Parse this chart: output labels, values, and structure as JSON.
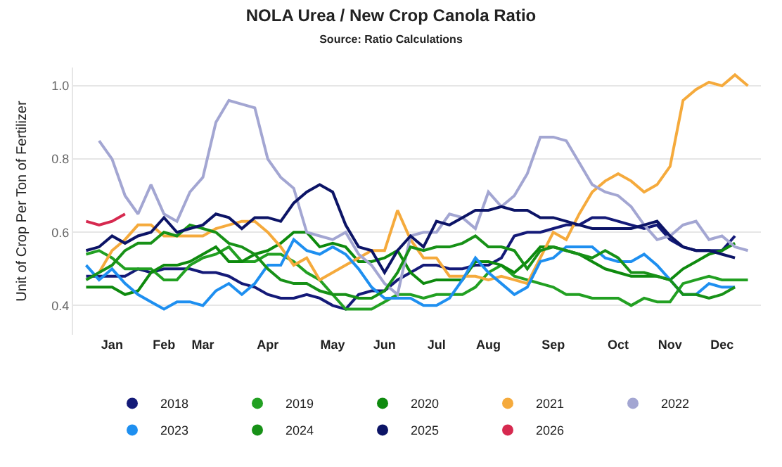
{
  "chart_data": {
    "type": "line",
    "title": "NOLA Urea / New Crop Canola Ratio",
    "subtitle": "Source: Ratio Calculations",
    "ylabel": "Unit of Crop Per Ton of Fertilizer",
    "categories": [
      null,
      null,
      "Jan",
      null,
      null,
      null,
      "Feb",
      null,
      null,
      "Mar",
      null,
      null,
      null,
      null,
      "Apr",
      null,
      null,
      null,
      null,
      "May",
      null,
      null,
      null,
      "Jun",
      null,
      null,
      null,
      "Jul",
      null,
      null,
      null,
      "Aug",
      null,
      null,
      null,
      null,
      "Sep",
      null,
      null,
      null,
      null,
      "Oct",
      null,
      null,
      null,
      "Nov",
      null,
      null,
      null,
      "Dec",
      null,
      null
    ],
    "ylim": [
      0.32,
      1.05
    ],
    "yticks": [
      0.4,
      0.6,
      0.8,
      {
        "value": 1.0,
        "label": "1.0"
      }
    ],
    "grid": "y",
    "legend": "bottom",
    "marker": "none",
    "line_style": "solid",
    "series": [
      {
        "name": "2018",
        "color": "#141a78",
        "values": [
          0.48,
          0.48,
          0.48,
          0.48,
          0.5,
          0.49,
          0.5,
          0.5,
          0.5,
          0.49,
          0.49,
          0.48,
          0.46,
          0.45,
          0.43,
          0.42,
          0.42,
          0.43,
          0.42,
          0.4,
          0.39,
          0.43,
          0.44,
          0.44,
          0.47,
          0.49,
          0.51,
          0.51,
          0.5,
          0.5,
          0.51,
          0.51,
          0.53,
          0.59,
          0.6,
          0.6,
          0.61,
          0.62,
          0.62,
          0.64,
          0.64,
          0.63,
          0.62,
          0.61,
          0.62,
          0.58,
          0.56,
          0.55,
          0.55,
          0.55,
          0.59,
          null
        ]
      },
      {
        "name": "2019",
        "color": "#22a022",
        "values": [
          0.54,
          0.55,
          0.53,
          0.5,
          0.5,
          0.5,
          0.47,
          0.47,
          0.51,
          0.53,
          0.54,
          0.56,
          0.52,
          0.52,
          0.54,
          0.54,
          0.52,
          0.49,
          0.47,
          0.43,
          0.39,
          0.39,
          0.39,
          0.41,
          0.43,
          0.43,
          0.42,
          0.43,
          0.43,
          0.43,
          0.45,
          0.49,
          0.51,
          0.48,
          0.47,
          0.46,
          0.45,
          0.43,
          0.43,
          0.42,
          0.42,
          0.42,
          0.4,
          0.42,
          0.41,
          0.41,
          0.46,
          0.47,
          0.48,
          0.47,
          0.47,
          0.47
        ]
      },
      {
        "name": "2020",
        "color": "#0e8a0e",
        "values": [
          0.45,
          0.45,
          0.45,
          0.43,
          0.44,
          0.49,
          0.51,
          0.51,
          0.52,
          0.54,
          0.56,
          0.52,
          0.52,
          0.54,
          0.55,
          0.57,
          0.6,
          0.6,
          0.56,
          0.57,
          0.56,
          0.52,
          0.52,
          0.53,
          0.55,
          0.49,
          0.46,
          0.47,
          0.47,
          0.47,
          0.52,
          0.52,
          0.51,
          0.49,
          0.52,
          0.56,
          0.56,
          0.55,
          0.54,
          0.52,
          0.5,
          0.49,
          0.48,
          0.48,
          0.48,
          0.47,
          0.5,
          0.52,
          0.54,
          0.55,
          0.57,
          null
        ]
      },
      {
        "name": "2021",
        "color": "#f5aa3c",
        "values": [
          null,
          0.49,
          0.55,
          0.58,
          0.62,
          0.62,
          0.59,
          0.59,
          0.59,
          0.59,
          0.61,
          0.62,
          0.63,
          0.63,
          0.6,
          0.56,
          0.51,
          0.53,
          0.47,
          0.49,
          0.51,
          0.53,
          0.55,
          0.55,
          0.66,
          0.58,
          0.53,
          0.53,
          0.48,
          0.48,
          0.48,
          0.47,
          0.48,
          0.47,
          0.46,
          0.53,
          0.6,
          0.58,
          0.65,
          0.71,
          0.74,
          0.76,
          0.74,
          0.71,
          0.73,
          0.78,
          0.96,
          0.99,
          1.01,
          1.0,
          1.03,
          1.0
        ]
      },
      {
        "name": "2022",
        "color": "#a3a6d2",
        "values": [
          null,
          0.85,
          0.8,
          0.7,
          0.65,
          0.73,
          0.65,
          0.63,
          0.71,
          0.75,
          0.9,
          0.96,
          0.95,
          0.94,
          0.8,
          0.75,
          0.72,
          0.6,
          0.59,
          0.58,
          0.6,
          0.54,
          0.51,
          0.46,
          0.43,
          0.59,
          0.6,
          0.6,
          0.65,
          0.64,
          0.61,
          0.71,
          0.67,
          0.7,
          0.76,
          0.86,
          0.86,
          0.85,
          0.79,
          0.73,
          0.71,
          0.7,
          0.67,
          0.62,
          0.58,
          0.59,
          0.62,
          0.63,
          0.58,
          0.59,
          0.56,
          0.55
        ]
      },
      {
        "name": "2023",
        "color": "#1e8ff0",
        "values": [
          0.51,
          0.47,
          0.5,
          0.46,
          0.43,
          0.41,
          0.39,
          0.41,
          0.41,
          0.4,
          0.44,
          0.46,
          0.43,
          0.46,
          0.51,
          0.51,
          0.58,
          0.55,
          0.54,
          0.56,
          0.54,
          0.5,
          0.45,
          0.42,
          0.42,
          0.42,
          0.4,
          0.4,
          0.42,
          0.47,
          0.53,
          0.49,
          0.46,
          0.43,
          0.45,
          0.52,
          0.53,
          0.56,
          0.56,
          0.56,
          0.53,
          0.52,
          0.52,
          0.54,
          0.51,
          0.47,
          0.43,
          0.43,
          0.46,
          0.45,
          0.45,
          null
        ]
      },
      {
        "name": "2024",
        "color": "#179117",
        "values": [
          0.47,
          0.49,
          0.51,
          0.55,
          0.57,
          0.57,
          0.6,
          0.59,
          0.62,
          0.61,
          0.6,
          0.57,
          0.56,
          0.54,
          0.5,
          0.47,
          0.46,
          0.46,
          0.44,
          0.43,
          0.43,
          0.42,
          0.42,
          0.44,
          0.49,
          0.56,
          0.55,
          0.56,
          0.56,
          0.57,
          0.59,
          0.56,
          0.56,
          0.55,
          0.5,
          0.55,
          0.56,
          0.55,
          0.54,
          0.53,
          0.55,
          0.53,
          0.49,
          0.49,
          0.48,
          0.47,
          0.43,
          0.43,
          0.42,
          0.43,
          0.45,
          null
        ]
      },
      {
        "name": "2025",
        "color": "#0c1466",
        "values": [
          0.55,
          0.56,
          0.59,
          0.57,
          0.59,
          0.6,
          0.64,
          0.6,
          0.61,
          0.62,
          0.65,
          0.64,
          0.61,
          0.64,
          0.64,
          0.63,
          0.68,
          0.71,
          0.73,
          0.71,
          0.62,
          0.56,
          0.55,
          0.49,
          0.55,
          0.59,
          0.56,
          0.63,
          0.62,
          0.64,
          0.66,
          0.66,
          0.67,
          0.66,
          0.66,
          0.64,
          0.64,
          0.63,
          0.62,
          0.61,
          0.61,
          0.61,
          0.61,
          0.62,
          0.63,
          0.59,
          0.56,
          0.55,
          0.55,
          0.54,
          0.53,
          null
        ]
      },
      {
        "name": "2026",
        "color": "#d6294f",
        "values": [
          0.63,
          0.62,
          0.63,
          0.65,
          null,
          null,
          null,
          null,
          null,
          null,
          null,
          null,
          null,
          null,
          null,
          null,
          null,
          null,
          null,
          null,
          null,
          null,
          null,
          null,
          null,
          null,
          null,
          null,
          null,
          null,
          null,
          null,
          null,
          null,
          null,
          null,
          null,
          null,
          null,
          null,
          null,
          null,
          null,
          null,
          null,
          null,
          null,
          null,
          null,
          null,
          null,
          null
        ]
      }
    ]
  }
}
